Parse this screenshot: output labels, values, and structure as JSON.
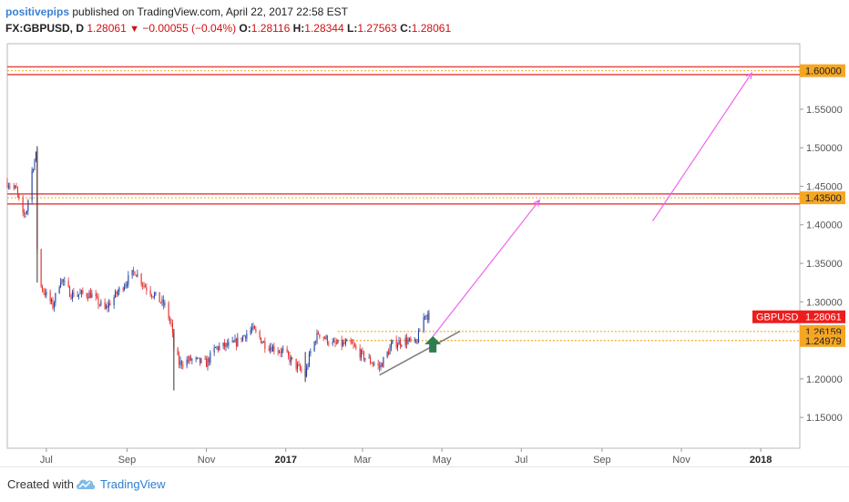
{
  "header": {
    "author": "positivepips",
    "published_text": "published on TradingView.com, April 22, 2017 22:58 EST",
    "symbol": "FX:GBPUSD, D",
    "last": "1.28061",
    "arrow": "▼",
    "change": "−0.00055 (−0.04%)",
    "open_label": "O:",
    "open": "1.28116",
    "high_label": "H:",
    "high": "1.28344",
    "low_label": "L:",
    "low": "1.27563",
    "close_label": "C:",
    "close": "1.28061"
  },
  "footer": {
    "created_with": "Created with",
    "brand": "TradingView",
    "logo_icon": "tradingview-cloud-icon"
  },
  "colors": {
    "up": "#1f3f9e",
    "down": "#e32b2b",
    "zone": "#e24a4a",
    "dotted": "#f5a623",
    "projection": "#ee66ee",
    "trendline": "#808080",
    "arrow": "#2e7d4f",
    "price_tag": "#f5a623",
    "current_tag": "#ee1c1c"
  },
  "chart_data": {
    "type": "candlestick",
    "symbol": "GBPUSD",
    "x_axis": {
      "range": [
        "2016-06-01",
        "2018-01-31"
      ],
      "ticks": [
        {
          "date": "2016-07-01",
          "label": "Jul",
          "bold": false
        },
        {
          "date": "2016-09-01",
          "label": "Sep",
          "bold": false
        },
        {
          "date": "2016-11-01",
          "label": "Nov",
          "bold": false
        },
        {
          "date": "2017-01-01",
          "label": "2017",
          "bold": true
        },
        {
          "date": "2017-03-01",
          "label": "Mar",
          "bold": false
        },
        {
          "date": "2017-05-01",
          "label": "May",
          "bold": false
        },
        {
          "date": "2017-07-01",
          "label": "Jul",
          "bold": false
        },
        {
          "date": "2017-09-01",
          "label": "Sep",
          "bold": false
        },
        {
          "date": "2017-11-01",
          "label": "Nov",
          "bold": false
        },
        {
          "date": "2018-01-01",
          "label": "2018",
          "bold": true
        }
      ]
    },
    "y_axis": {
      "range": [
        1.11,
        1.635
      ],
      "ticks": [
        "1.15000",
        "1.20000",
        "1.25000",
        "1.30000",
        "1.35000",
        "1.40000",
        "1.45000",
        "1.50000",
        "1.55000",
        "1.60000"
      ]
    },
    "grid": false,
    "price_path": [
      [
        "2016-06-01",
        1.455
      ],
      [
        "2016-06-08",
        1.445
      ],
      [
        "2016-06-13",
        1.41
      ],
      [
        "2016-06-16",
        1.42
      ],
      [
        "2016-06-20",
        1.47
      ],
      [
        "2016-06-23",
        1.49
      ],
      [
        "2016-06-24",
        1.37
      ],
      [
        "2016-06-27",
        1.32
      ],
      [
        "2016-07-06",
        1.295
      ],
      [
        "2016-07-12",
        1.33
      ],
      [
        "2016-07-20",
        1.31
      ],
      [
        "2016-08-04",
        1.31
      ],
      [
        "2016-08-15",
        1.29
      ],
      [
        "2016-08-26",
        1.315
      ],
      [
        "2016-09-07",
        1.34
      ],
      [
        "2016-09-15",
        1.32
      ],
      [
        "2016-09-30",
        1.295
      ],
      [
        "2016-10-05",
        1.27
      ],
      [
        "2016-10-07",
        1.24
      ],
      [
        "2016-10-11",
        1.22
      ],
      [
        "2016-10-20",
        1.225
      ],
      [
        "2016-11-01",
        1.22
      ],
      [
        "2016-11-08",
        1.24
      ],
      [
        "2016-11-22",
        1.245
      ],
      [
        "2016-12-06",
        1.265
      ],
      [
        "2016-12-16",
        1.245
      ],
      [
        "2016-12-30",
        1.235
      ],
      [
        "2017-01-10",
        1.215
      ],
      [
        "2017-01-16",
        1.205
      ],
      [
        "2017-01-20",
        1.235
      ],
      [
        "2017-01-26",
        1.26
      ],
      [
        "2017-02-06",
        1.245
      ],
      [
        "2017-02-20",
        1.245
      ],
      [
        "2017-03-01",
        1.23
      ],
      [
        "2017-03-14",
        1.215
      ],
      [
        "2017-03-24",
        1.245
      ],
      [
        "2017-04-03",
        1.25
      ],
      [
        "2017-04-11",
        1.245
      ],
      [
        "2017-04-17",
        1.28
      ],
      [
        "2017-04-18",
        1.285
      ],
      [
        "2017-04-21",
        1.281
      ]
    ],
    "spikes": [
      {
        "date": "2016-06-24",
        "high": 1.502,
        "low": 1.325
      },
      {
        "date": "2016-10-07",
        "high": 1.265,
        "low": 1.185
      },
      {
        "date": "2017-01-16",
        "high": 1.235,
        "low": 1.196
      }
    ],
    "zones": [
      {
        "top": 1.605,
        "bottom": 1.595,
        "mid": 1.6
      },
      {
        "top": 1.44,
        "bottom": 1.427,
        "mid": 1.435
      }
    ],
    "support_levels": [
      1.26159,
      1.24979
    ],
    "trendline": {
      "start": [
        "2017-03-14",
        1.205
      ],
      "end": [
        "2017-05-15",
        1.262
      ]
    },
    "projections": [
      {
        "start": [
          "2017-04-24",
          1.255
        ],
        "end": [
          "2017-07-15",
          1.432
        ]
      },
      {
        "start": [
          "2017-10-10",
          1.405
        ],
        "end": [
          "2017-12-25",
          1.597
        ]
      }
    ],
    "up_arrow": {
      "date": "2017-04-24",
      "value": 1.245
    },
    "price_labels": [
      {
        "value": 1.6,
        "text": "1.60000",
        "kind": "level"
      },
      {
        "value": 1.435,
        "text": "1.43500",
        "kind": "level"
      },
      {
        "value": 1.28061,
        "text": "1.28061",
        "kind": "current",
        "name": "GBPUSD"
      },
      {
        "value": 1.26159,
        "text": "1.26159",
        "kind": "level"
      },
      {
        "value": 1.24979,
        "text": "1.24979",
        "kind": "level"
      }
    ]
  }
}
